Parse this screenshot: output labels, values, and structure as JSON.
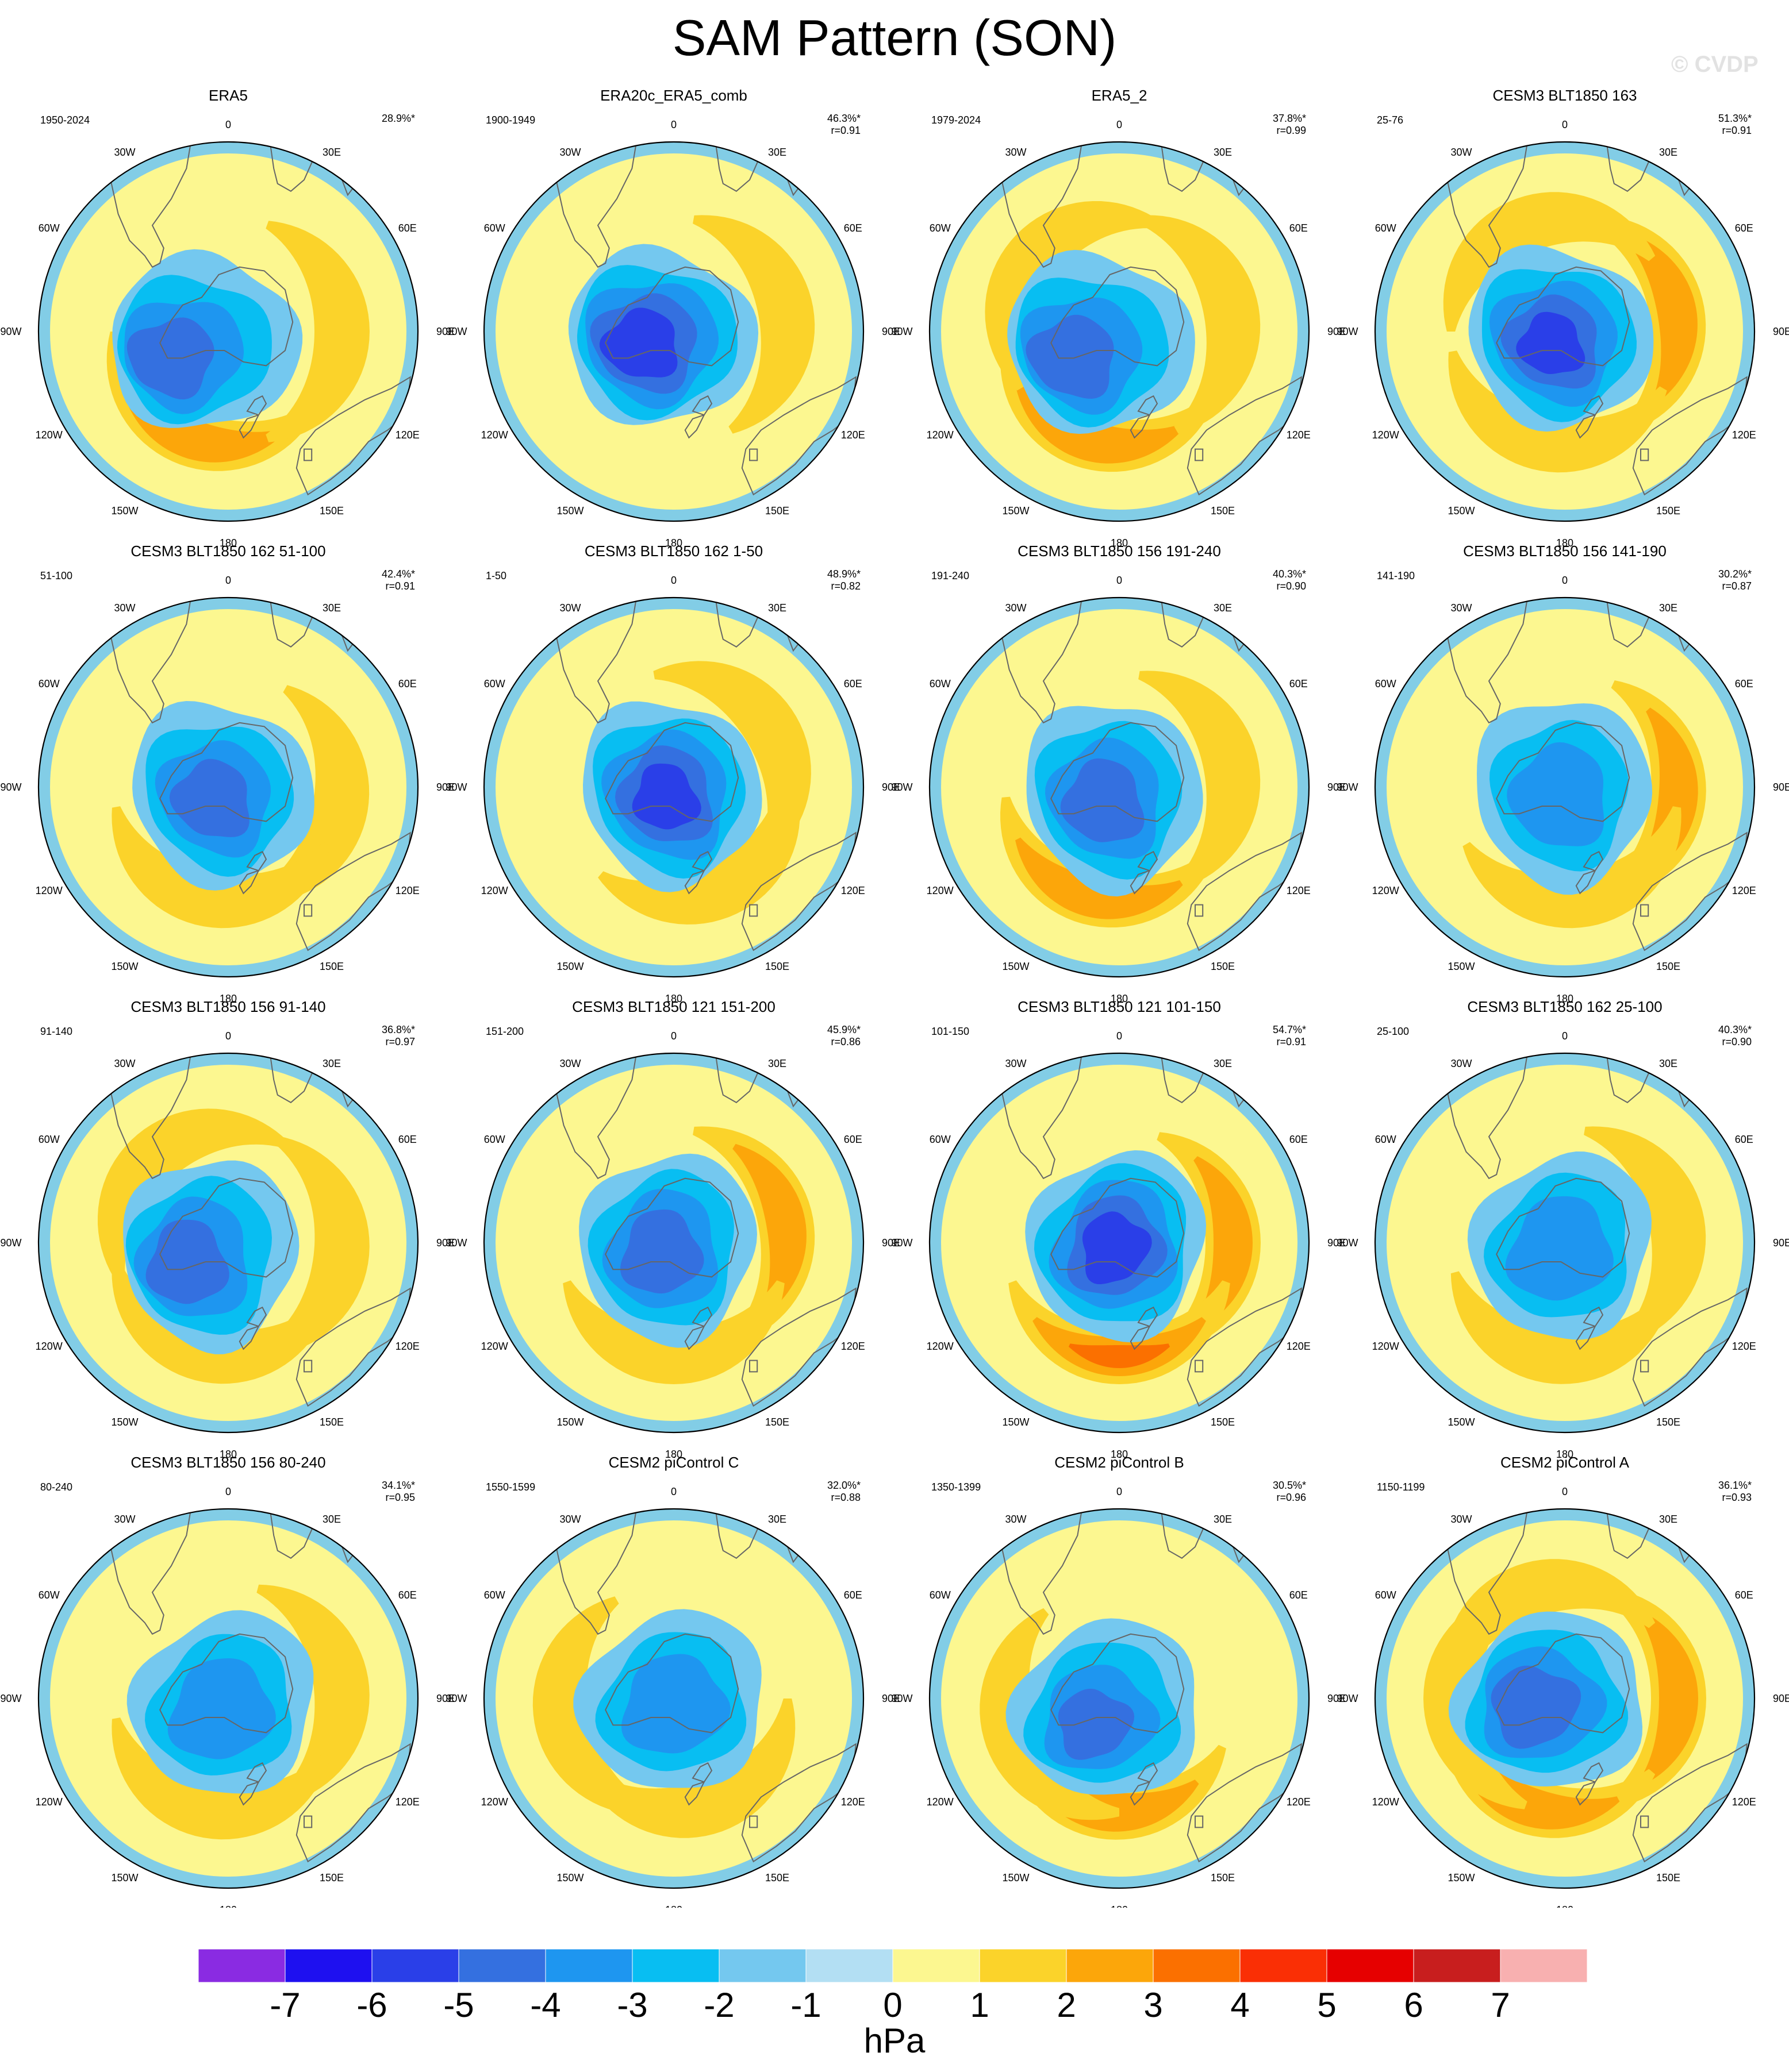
{
  "title": "SAM Pattern (SON)",
  "watermark": "© CVDP",
  "colorbar": {
    "unit": "hPa",
    "ticks": [
      "-7",
      "-6",
      "-5",
      "-4",
      "-3",
      "-2",
      "-1",
      "0",
      "1",
      "2",
      "3",
      "4",
      "5",
      "6",
      "7"
    ],
    "colors": [
      "#8a2be2",
      "#1e10f0",
      "#2a3fe8",
      "#3470e0",
      "#1e96f0",
      "#08bef2",
      "#74c8ef",
      "#b3dff3",
      "#fcf790",
      "#fbd32a",
      "#fca60a",
      "#fb7000",
      "#fa2f05",
      "#e60000",
      "#c81e1e",
      "#f8b0b0"
    ]
  },
  "map_labels": {
    "lon_labels": [
      "0",
      "30E",
      "60E",
      "90E",
      "120E",
      "150E",
      "180",
      "150W",
      "120W",
      "90W",
      "60W",
      "30W"
    ]
  },
  "panels": [
    {
      "title": "ERA5",
      "period": "1950-2024",
      "variance": "28.9%*",
      "corr": "",
      "depth": 4.6,
      "pos_lobes": [
        {
          "angle": 200,
          "mag": 2.1
        },
        {
          "angle": 90,
          "mag": 1.4
        }
      ],
      "blue_shift": [
        0.22,
        0.1
      ]
    },
    {
      "title": "ERA20c_ERA5_comb",
      "period": "1900-1949",
      "variance": "46.3%*",
      "corr": "r=0.91",
      "depth": 5.8,
      "pos_lobes": [
        {
          "angle": 80,
          "mag": 1.2
        }
      ],
      "blue_shift": [
        0.12,
        0.05
      ]
    },
    {
      "title": "ERA5_2",
      "period": "1979-2024",
      "variance": "37.8%*",
      "corr": "r=0.99",
      "depth": 4.7,
      "pos_lobes": [
        {
          "angle": 195,
          "mag": 2.1
        },
        {
          "angle": 80,
          "mag": 1.5
        },
        {
          "angle": 310,
          "mag": 1.2
        }
      ],
      "blue_shift": [
        0.18,
        0.1
      ]
    },
    {
      "title": "CESM3 BLT1850 163",
      "period": "25-76",
      "variance": "51.3%*",
      "corr": "r=0.91",
      "depth": 5.3,
      "pos_lobes": [
        {
          "angle": 80,
          "mag": 2.3
        },
        {
          "angle": 190,
          "mag": 1.8
        },
        {
          "angle": 340,
          "mag": 1.3
        }
      ],
      "blue_shift": [
        0.05,
        0.05
      ]
    },
    {
      "title": "CESM3 BLT1850 162 51-100",
      "period": "51-100",
      "variance": "42.4%*",
      "corr": "r=0.91",
      "depth": 4.4,
      "pos_lobes": [
        {
          "angle": 100,
          "mag": 1.6
        },
        {
          "angle": 190,
          "mag": 1.9
        }
      ],
      "blue_shift": [
        0.06,
        0.05
      ]
    },
    {
      "title": "CESM3 BLT1850 162 1-50",
      "period": "1-50",
      "variance": "48.9%*",
      "corr": "r=0.82",
      "depth": 5.4,
      "pos_lobes": [
        {
          "angle": 60,
          "mag": 1.7
        },
        {
          "angle": 150,
          "mag": 1.5
        }
      ],
      "blue_shift": [
        0.03,
        0.04
      ]
    },
    {
      "title": "CESM3 BLT1850 156 191-240",
      "period": "191-240",
      "variance": "40.3%*",
      "corr": "r=0.90",
      "depth": 4.6,
      "pos_lobes": [
        {
          "angle": 80,
          "mag": 1.5
        },
        {
          "angle": 195,
          "mag": 2.0
        }
      ],
      "blue_shift": [
        0.06,
        0.06
      ]
    },
    {
      "title": "CESM3 BLT1850 156 141-190",
      "period": "141-190",
      "variance": "30.2%*",
      "corr": "r=0.87",
      "depth": 3.6,
      "pos_lobes": [
        {
          "angle": 95,
          "mag": 2.1
        },
        {
          "angle": 170,
          "mag": 1.4
        }
      ],
      "blue_shift": [
        0.02,
        0.04
      ]
    },
    {
      "title": "CESM3 BLT1850 156 91-140",
      "period": "91-140",
      "variance": "36.8%*",
      "corr": "r=0.97",
      "depth": 4.6,
      "pos_lobes": [
        {
          "angle": 95,
          "mag": 1.6
        },
        {
          "angle": 190,
          "mag": 1.4
        },
        {
          "angle": 320,
          "mag": 1.2
        }
      ],
      "blue_shift": [
        0.16,
        0.08
      ]
    },
    {
      "title": "CESM3 BLT1850 121 151-200",
      "period": "151-200",
      "variance": "45.9%*",
      "corr": "r=0.86",
      "depth": 4.6,
      "pos_lobes": [
        {
          "angle": 80,
          "mag": 2.5
        },
        {
          "angle": 180,
          "mag": 1.6
        }
      ],
      "blue_shift": [
        0.05,
        0.04
      ]
    },
    {
      "title": "CESM3 BLT1850 121 101-150",
      "period": "101-150",
      "variance": "54.7%*",
      "corr": "r=0.91",
      "depth": 5.6,
      "pos_lobes": [
        {
          "angle": 90,
          "mag": 2.4
        },
        {
          "angle": 180,
          "mag": 3.3
        }
      ],
      "blue_shift": [
        0.02,
        0.02
      ]
    },
    {
      "title": "CESM3 BLT1850 162 25-100",
      "period": "25-100",
      "variance": "40.3%*",
      "corr": "r=0.90",
      "depth": 3.8,
      "pos_lobes": [
        {
          "angle": 80,
          "mag": 1.7
        },
        {
          "angle": 185,
          "mag": 1.6
        }
      ],
      "blue_shift": [
        0.02,
        0.03
      ]
    },
    {
      "title": "CESM3 BLT1850 156 80-240",
      "period": "80-240",
      "variance": "34.1%*",
      "corr": "r=0.95",
      "depth": 3.7,
      "pos_lobes": [
        {
          "angle": 85,
          "mag": 1.6
        },
        {
          "angle": 190,
          "mag": 1.7
        }
      ],
      "blue_shift": [
        0.03,
        0.05
      ]
    },
    {
      "title": "CESM2 piControl C",
      "period": "1550-1599",
      "variance": "32.0%*",
      "corr": "r=0.88",
      "depth": 3.7,
      "pos_lobes": [
        {
          "angle": 160,
          "mag": 1.6
        },
        {
          "angle": 260,
          "mag": 1.4
        }
      ],
      "blue_shift": [
        0.0,
        0.03
      ]
    },
    {
      "title": "CESM2 piControl B",
      "period": "1350-1399",
      "variance": "30.5%*",
      "corr": "r=0.96",
      "depth": 4.1,
      "pos_lobes": [
        {
          "angle": 185,
          "mag": 2.3
        },
        {
          "angle": 250,
          "mag": 1.4
        }
      ],
      "blue_shift": [
        0.1,
        0.1
      ]
    },
    {
      "title": "CESM2 piControl A",
      "period": "1150-1199",
      "variance": "36.1%*",
      "corr": "r=0.93",
      "depth": 4.7,
      "pos_lobes": [
        {
          "angle": 90,
          "mag": 2.2
        },
        {
          "angle": 200,
          "mag": 2.3
        },
        {
          "angle": 270,
          "mag": 1.6
        },
        {
          "angle": 340,
          "mag": 1.5
        }
      ],
      "blue_shift": [
        0.12,
        0.03
      ]
    }
  ]
}
